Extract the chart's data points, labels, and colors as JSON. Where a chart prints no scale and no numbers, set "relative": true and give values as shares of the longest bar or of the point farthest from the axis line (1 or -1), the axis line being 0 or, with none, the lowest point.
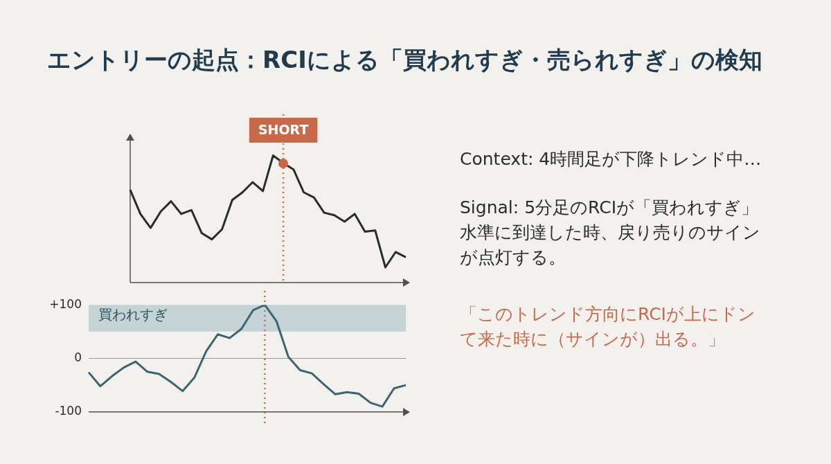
{
  "chart_data": [
    {
      "type": "line",
      "title": "エントリーの起点：RCIによる「買われすぎ・売られすぎ」の検知",
      "relative": true,
      "tick_labels": false,
      "grid": false,
      "legend": false,
      "marker": "none",
      "categories": [
        null,
        null,
        null,
        null,
        null,
        null,
        null,
        null,
        null,
        null,
        null,
        null,
        null,
        null,
        null,
        null,
        null,
        null,
        null,
        null,
        null,
        null,
        null,
        null,
        null,
        null,
        null,
        null
      ],
      "series": [
        {
          "color": "#2b2b2b",
          "values": [
            0.73,
            0.54,
            0.43,
            0.56,
            0.64,
            0.54,
            0.57,
            0.39,
            0.34,
            0.42,
            0.65,
            0.71,
            0.79,
            0.72,
            1,
            0.94,
            0.89,
            0.71,
            0.67,
            0.55,
            0.53,
            0.48,
            0.54,
            0.4,
            0.41,
            0.12,
            0.24,
            0.2
          ]
        }
      ],
      "annotations": [
        "SHORT"
      ]
    },
    {
      "type": "line",
      "tick_labels": "y",
      "grid": false,
      "legend": false,
      "marker": "none",
      "ylim": [
        -100,
        100
      ],
      "yticks": [
        {
          "value": 100,
          "label": "+100"
        },
        0,
        -100
      ],
      "categories": [
        null,
        null,
        null,
        null,
        null,
        null,
        null,
        null,
        null,
        null,
        null,
        null,
        null,
        null,
        null,
        null,
        null,
        null,
        null,
        null,
        null,
        null,
        null,
        null,
        null,
        null,
        null,
        null
      ],
      "series": [
        {
          "color": "#3d6570",
          "values": [
            -26,
            -52,
            -33,
            -17,
            -6,
            -25,
            -29,
            -44,
            -61,
            -36,
            13,
            45,
            38,
            55,
            90,
            100,
            69,
            3,
            -22,
            -28,
            -48,
            -67,
            -63,
            -66,
            -83,
            -90,
            -56,
            -50
          ]
        }
      ],
      "bands": [
        {
          "axis": "y",
          "from": 50,
          "to": 100,
          "label": "買われすぎ",
          "color": "#c5d3d6"
        }
      ],
      "ref_lines": [
        {
          "axis": "y",
          "value": 0,
          "color": "#9a9a9a",
          "line_style": "solid"
        }
      ]
    },
    {
      "type": "other",
      "annotations": [
        "Context: 4時間足が下降トレンド中…",
        "Signal: 5分足のRCIが「買われすぎ」水準に到達した時、戻り売りのサインが点灯する。",
        "「このトレンド方向にRCIが上にドンて来た時に（サインが）出る。」"
      ]
    }
  ]
}
